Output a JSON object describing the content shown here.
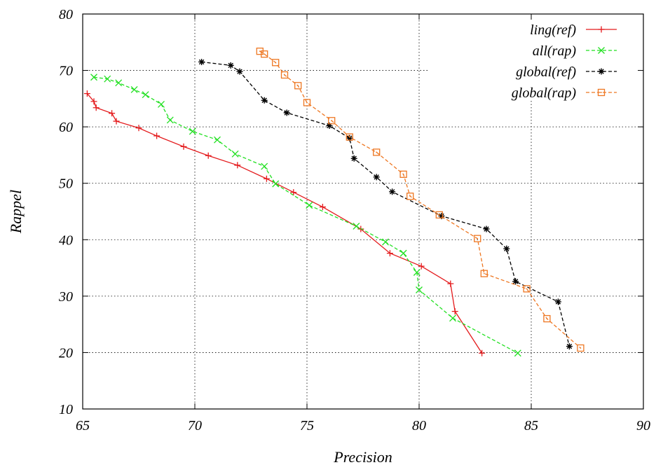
{
  "chart_data": {
    "type": "line",
    "title": "",
    "xlabel": "Precision",
    "ylabel": "Rappel",
    "xlim": [
      65,
      90
    ],
    "ylim": [
      10,
      80
    ],
    "xticks": [
      65,
      70,
      75,
      80,
      85,
      90
    ],
    "yticks": [
      10,
      20,
      30,
      40,
      50,
      60,
      70,
      80
    ],
    "grid": true,
    "legend_position": "top-right",
    "series": [
      {
        "name": "ling(ref)",
        "color": "#e41a1c",
        "marker": "plus",
        "dashed": false,
        "points": [
          [
            65.2,
            65.9
          ],
          [
            65.5,
            64.5
          ],
          [
            65.6,
            63.4
          ],
          [
            66.3,
            62.4
          ],
          [
            66.5,
            61.0
          ],
          [
            67.5,
            59.8
          ],
          [
            68.3,
            58.4
          ],
          [
            69.5,
            56.5
          ],
          [
            70.6,
            54.9
          ],
          [
            71.9,
            53.2
          ],
          [
            73.2,
            50.8
          ],
          [
            74.4,
            48.4
          ],
          [
            75.7,
            45.8
          ],
          [
            77.4,
            41.9
          ],
          [
            78.7,
            37.6
          ],
          [
            80.1,
            35.3
          ],
          [
            81.4,
            32.2
          ],
          [
            81.6,
            27.3
          ],
          [
            82.8,
            19.9
          ]
        ]
      },
      {
        "name": "all(rap)",
        "color": "#22e022",
        "marker": "x",
        "dashed": true,
        "points": [
          [
            65.5,
            68.8
          ],
          [
            66.1,
            68.5
          ],
          [
            66.6,
            67.8
          ],
          [
            67.3,
            66.6
          ],
          [
            67.8,
            65.7
          ],
          [
            68.5,
            64.0
          ],
          [
            68.9,
            61.2
          ],
          [
            69.9,
            59.2
          ],
          [
            71.0,
            57.7
          ],
          [
            71.8,
            55.2
          ],
          [
            73.1,
            53.0
          ],
          [
            73.6,
            49.9
          ],
          [
            75.1,
            46.1
          ],
          [
            77.2,
            42.4
          ],
          [
            78.5,
            39.6
          ],
          [
            79.3,
            37.6
          ],
          [
            79.9,
            34.2
          ],
          [
            80.0,
            31.1
          ],
          [
            81.5,
            26.1
          ],
          [
            84.4,
            19.9
          ]
        ]
      },
      {
        "name": "global(ref)",
        "color": "#000000",
        "marker": "star",
        "dashed": true,
        "points": [
          [
            70.3,
            71.5
          ],
          [
            71.6,
            70.9
          ],
          [
            72.0,
            69.8
          ],
          [
            73.1,
            64.7
          ],
          [
            74.1,
            62.5
          ],
          [
            76.0,
            60.2
          ],
          [
            76.9,
            58.0
          ],
          [
            77.1,
            54.4
          ],
          [
            78.1,
            51.1
          ],
          [
            78.8,
            48.5
          ],
          [
            81.0,
            44.2
          ],
          [
            83.0,
            41.9
          ],
          [
            83.9,
            38.4
          ],
          [
            84.3,
            32.6
          ],
          [
            86.2,
            29.0
          ],
          [
            86.7,
            21.1
          ]
        ]
      },
      {
        "name": "global(rap)",
        "color": "#ee7722",
        "marker": "square",
        "dashed": true,
        "points": [
          [
            72.9,
            73.4
          ],
          [
            73.1,
            72.9
          ],
          [
            73.6,
            71.4
          ],
          [
            74.0,
            69.2
          ],
          [
            74.6,
            67.3
          ],
          [
            75.0,
            64.3
          ],
          [
            76.1,
            61.1
          ],
          [
            76.9,
            58.2
          ],
          [
            78.1,
            55.5
          ],
          [
            79.3,
            51.6
          ],
          [
            79.6,
            47.7
          ],
          [
            80.9,
            44.4
          ],
          [
            82.6,
            40.2
          ],
          [
            82.9,
            34.0
          ],
          [
            84.8,
            31.3
          ],
          [
            85.7,
            26.0
          ],
          [
            87.2,
            20.8
          ]
        ]
      }
    ]
  }
}
